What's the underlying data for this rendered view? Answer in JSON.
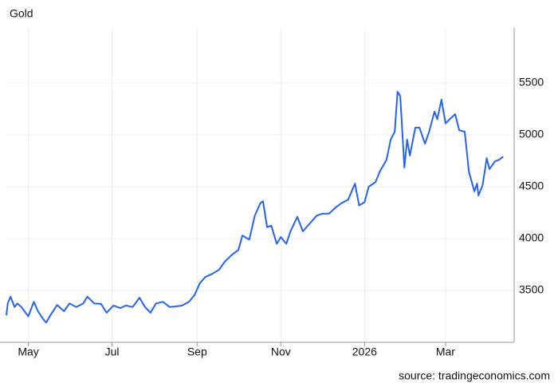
{
  "chart_data": {
    "type": "line",
    "title": "Gold",
    "source": "source: tradingeconomics.com",
    "x": [
      0,
      1,
      3,
      6,
      8,
      11,
      16,
      20,
      23,
      27,
      29,
      32,
      37,
      42,
      46,
      51,
      56,
      59,
      64,
      69,
      73,
      78,
      83,
      87,
      92,
      97,
      101,
      105,
      109,
      114,
      119,
      123,
      128,
      133,
      137,
      141,
      145,
      150,
      155,
      159,
      164,
      169,
      172,
      177,
      181,
      185,
      187,
      190,
      193,
      197,
      200,
      204,
      207,
      212,
      216,
      221,
      226,
      230,
      235,
      240,
      244,
      249,
      254,
      257,
      261,
      264,
      269,
      272,
      277,
      280,
      283,
      285,
      287,
      290,
      292,
      294,
      298,
      301,
      305,
      308,
      312,
      314,
      317,
      320,
      323,
      327,
      330,
      334,
      337,
      341,
      343,
      344,
      347,
      350,
      352,
      356,
      359,
      362
    ],
    "series": [
      {
        "name": "Gold",
        "color": "#2563eb",
        "values": [
          3260,
          3375,
          3440,
          3340,
          3375,
          3340,
          3250,
          3390,
          3300,
          3220,
          3190,
          3260,
          3360,
          3300,
          3375,
          3340,
          3375,
          3440,
          3375,
          3370,
          3285,
          3355,
          3330,
          3355,
          3340,
          3430,
          3340,
          3285,
          3375,
          3390,
          3340,
          3345,
          3355,
          3390,
          3455,
          3570,
          3630,
          3660,
          3700,
          3775,
          3840,
          3890,
          4030,
          3990,
          4220,
          4340,
          4360,
          4110,
          4125,
          3950,
          4015,
          3950,
          4070,
          4210,
          4070,
          4145,
          4220,
          4240,
          4240,
          4300,
          4340,
          4375,
          4530,
          4320,
          4350,
          4500,
          4545,
          4645,
          4760,
          4955,
          5030,
          5415,
          5375,
          4685,
          4955,
          4800,
          5070,
          5070,
          4915,
          5030,
          5225,
          5150,
          5340,
          5110,
          5150,
          5200,
          5045,
          5030,
          4645,
          4455,
          4530,
          4415,
          4515,
          4775,
          4670,
          4745,
          4760,
          4790
        ]
      }
    ],
    "xlim": [
      0,
      370
    ],
    "xticks": [
      {
        "value": 16,
        "label": "May"
      },
      {
        "value": 77,
        "label": "Jul"
      },
      {
        "value": 139,
        "label": "Sep"
      },
      {
        "value": 200,
        "label": "Nov"
      },
      {
        "value": 261,
        "label": "2026"
      },
      {
        "value": 320,
        "label": "Mar"
      }
    ],
    "ylim": [
      3000,
      6000
    ],
    "yticks": [
      3500,
      4000,
      4500,
      5000,
      5500
    ],
    "grid": true
  }
}
